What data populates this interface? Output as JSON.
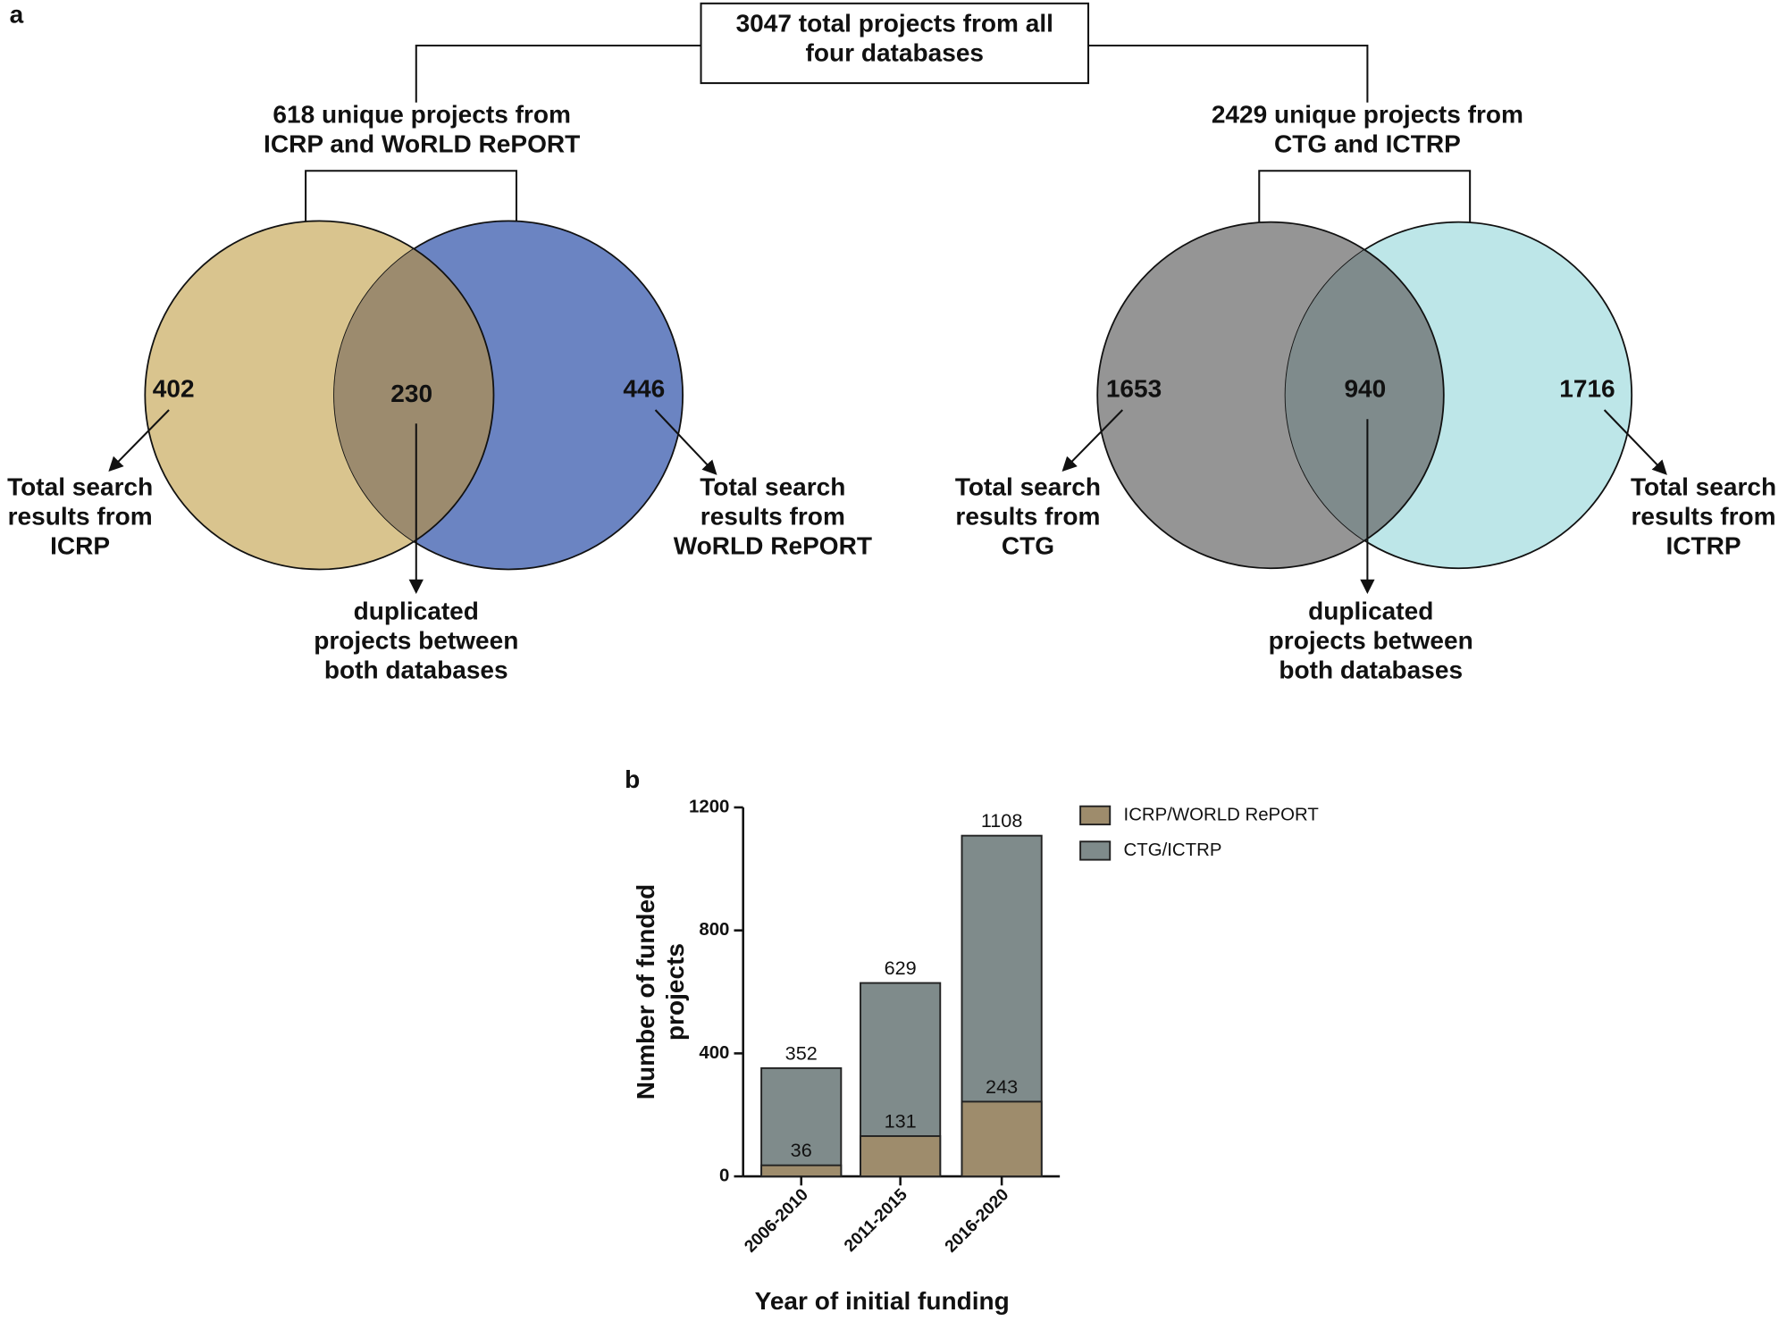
{
  "panel_a": {
    "label": "a",
    "total_box": [
      "3047 total projects from all",
      "four databases"
    ],
    "left": {
      "heading": [
        "618 unique projects from",
        "ICRP and WoRLD RePORT"
      ],
      "counts": [
        402,
        230,
        446
      ],
      "labels": [
        [
          "Total search",
          "results from",
          "ICRP"
        ],
        [
          "duplicated",
          "projects between",
          "both databases"
        ],
        [
          "Total search",
          "results from",
          "WoRLD RePORT"
        ]
      ]
    },
    "right": {
      "heading": [
        "2429 unique projects from",
        "CTG and ICTRP"
      ],
      "counts": [
        1653,
        940,
        1716
      ],
      "labels": [
        [
          "Total search",
          "results from",
          "CTG"
        ],
        [
          "duplicated",
          "projects between",
          "both databases"
        ],
        [
          "Total search",
          "results from",
          "ICTRP"
        ]
      ]
    }
  },
  "chart_data": {
    "type": "bar",
    "panel_label": "b",
    "y_label": [
      "Number of funded",
      "projects"
    ],
    "x_label": "Year of initial funding",
    "categories": [
      "2006-2010",
      "2011-2015",
      "2016-2020"
    ],
    "series": [
      {
        "name": "CTG/ICTRP",
        "color": "#7f8b8b",
        "values": [
          352,
          629,
          1108
        ]
      },
      {
        "name": "ICRP/WORLD RePORT",
        "color": "#9e8c6c",
        "values": [
          36,
          131,
          243
        ]
      }
    ],
    "legend_order": [
      1,
      0
    ],
    "ylim": [
      0,
      1200
    ],
    "yticks": [
      0,
      400,
      800,
      1200
    ]
  }
}
